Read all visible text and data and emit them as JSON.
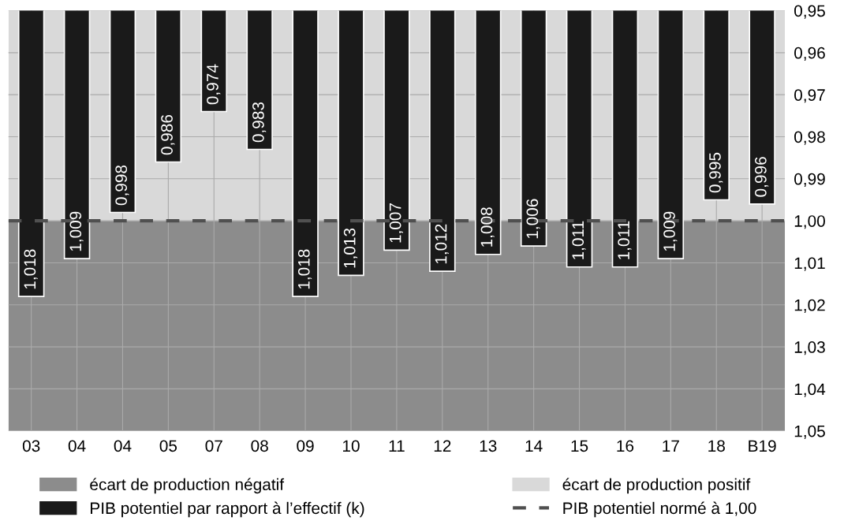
{
  "chart_data": {
    "type": "bar",
    "categories": [
      "03",
      "04",
      "04",
      "05",
      "07",
      "08",
      "09",
      "10",
      "11",
      "12",
      "13",
      "14",
      "15",
      "16",
      "17",
      "18",
      "B19"
    ],
    "series": [
      {
        "name": "PIB potentiel par rapport à l’effectif (k)",
        "color": "#1a1a1a",
        "values": [
          1.018,
          1.009,
          0.998,
          0.986,
          0.974,
          0.983,
          1.018,
          1.013,
          1.007,
          1.012,
          1.008,
          1.006,
          1.011,
          1.011,
          1.009,
          0.995,
          0.996
        ],
        "value_labels": [
          "1,018",
          "1,009",
          "0,998",
          "0,986",
          "0,974",
          "0,983",
          "1,018",
          "1,013",
          "1,007",
          "1,012",
          "1,008",
          "1,006",
          "1,011",
          "1,011",
          "1,009",
          "0,995",
          "0,996"
        ]
      }
    ],
    "ylim": [
      1.05,
      0.95
    ],
    "yticks": [
      {
        "value": 0.95,
        "label": "0,95"
      },
      {
        "value": 0.96,
        "label": "0,96"
      },
      {
        "value": 0.97,
        "label": "0,97"
      },
      {
        "value": 0.98,
        "label": "0,98"
      },
      {
        "value": 0.99,
        "label": "0,99"
      },
      {
        "value": 1.0,
        "label": "1,00"
      },
      {
        "value": 1.01,
        "label": "1,01"
      },
      {
        "value": 1.02,
        "label": "1,02"
      },
      {
        "value": 1.03,
        "label": "1,03"
      },
      {
        "value": 1.04,
        "label": "1,04"
      },
      {
        "value": 1.05,
        "label": "1,05"
      }
    ],
    "bands": [
      {
        "axis": "y",
        "from": 1.0,
        "to": 1.05,
        "label": "écart de production négatif",
        "color": "#8c8c8c"
      },
      {
        "axis": "y",
        "from": 0.95,
        "to": 1.0,
        "label": "écart de production positif",
        "color": "#d9d9d9"
      }
    ],
    "ref_lines": [
      {
        "axis": "y",
        "value": 1.0,
        "label": "PIB potentiel normé à 1,00",
        "color": "#505050",
        "line_style": "dashed"
      }
    ],
    "grid": true,
    "legend": "bottom"
  }
}
